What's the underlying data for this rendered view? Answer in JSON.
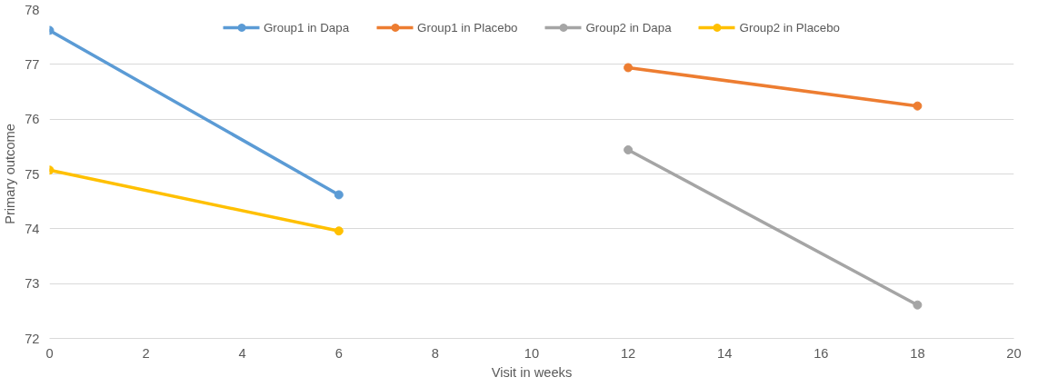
{
  "chart_data": {
    "type": "line",
    "xlabel": "Visit in weeks",
    "ylabel": "Primary outcome",
    "xlim": [
      0,
      20
    ],
    "xticks": [
      0,
      2,
      4,
      6,
      8,
      10,
      12,
      14,
      16,
      18,
      20
    ],
    "ylim": [
      72,
      78
    ],
    "yticks": [
      72,
      73,
      74,
      75,
      76,
      77,
      78
    ],
    "grid": "y",
    "legend": "top",
    "marker": "circle",
    "line_style": "solid",
    "series": [
      {
        "name": "Group1 in Dapa",
        "color": "#5b9bd5",
        "x": [
          0,
          6
        ],
        "values": [
          77.62,
          74.62
        ]
      },
      {
        "name": "Group1 in Placebo",
        "color": "#ed7d31",
        "x": [
          12,
          18
        ],
        "values": [
          76.94,
          76.24
        ]
      },
      {
        "name": "Group2 in Dapa",
        "color": "#a5a5a5",
        "x": [
          12,
          18
        ],
        "values": [
          75.44,
          72.61
        ]
      },
      {
        "name": "Group2 in Placebo",
        "color": "#ffc000",
        "x": [
          0,
          6
        ],
        "values": [
          75.07,
          73.96
        ]
      }
    ]
  }
}
